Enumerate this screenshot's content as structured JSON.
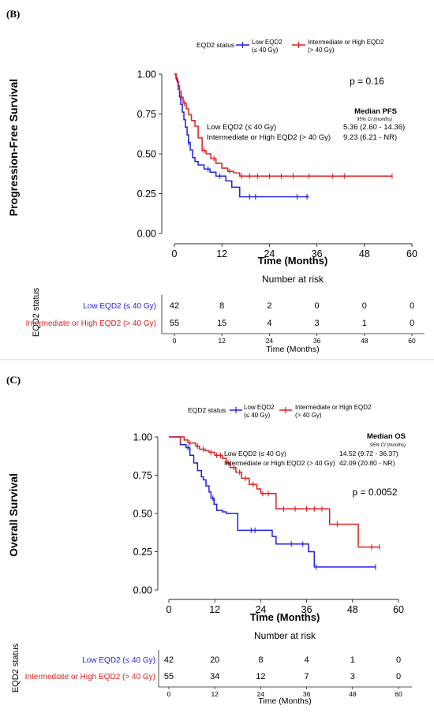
{
  "panels": [
    {
      "panel_label": "(B)",
      "ylabel": "Progression-Free Survival",
      "xlabel": "Time (Months)",
      "legend_title": "EQD2 status",
      "legend_items": [
        {
          "line1": "Low EQD2",
          "line2": "(≤ 40 Gy)",
          "color": "#1f1fe0"
        },
        {
          "line1": "Intermediate or High EQD2",
          "line2": "(> 40 Gy)",
          "color": "#e01f1f"
        }
      ],
      "pvalue": "p = 0.16",
      "median_title": "Median PFS",
      "median_subtitle": "95% CI (months)",
      "median_rows": [
        {
          "label": "Low EQD2 (≤ 40 Gy)",
          "value": "5.36 (2.60 - 14.36)"
        },
        {
          "label": "Intermediate or High EQD2 (> 40 Gy)",
          "value": "9.23 (6.21 - NR)"
        }
      ],
      "risk_title": "Number at risk",
      "risk_ylabel": "EQD2 status",
      "risk_xlabel": "Time (Months)",
      "risk_rows": [
        {
          "label": "Low EQD2 (≤ 40 Gy)",
          "color": "#1f1fe0",
          "counts": [
            "42",
            "8",
            "2",
            "0",
            "0",
            "0"
          ]
        },
        {
          "label": "Intermediate or High EQD2 (> 40 Gy)",
          "color": "#e01f1f",
          "counts": [
            "55",
            "15",
            "4",
            "3",
            "1",
            "0"
          ]
        }
      ]
    },
    {
      "panel_label": "(C)",
      "ylabel": "Overall Survival",
      "xlabel": "Time (Months)",
      "legend_title": "EQD2 status",
      "legend_items": [
        {
          "line1": "Low EQD2",
          "line2": "(≤ 40 Gy)",
          "color": "#1f1fe0"
        },
        {
          "line1": "Intermediate or High EQD2",
          "line2": "(> 40 Gy)",
          "color": "#e01f1f"
        }
      ],
      "pvalue": "p = 0.0052",
      "median_title": "Median OS",
      "median_subtitle": "95% CI (months)",
      "median_rows": [
        {
          "label": "Low EQD2 (≤ 40 Gy)",
          "value": "14.52 (9.72 - 36.37)"
        },
        {
          "label": "Intermediate or High EQD2 (> 40 Gy)",
          "value": "42.09 (20.80 - NR)"
        }
      ],
      "risk_title": "Number at risk",
      "risk_ylabel": "EQD2 status",
      "risk_xlabel": "Time (Months)",
      "risk_rows": [
        {
          "label": "Low EQD2 (≤ 40 Gy)",
          "color": "#1f1fe0",
          "counts": [
            "42",
            "20",
            "8",
            "4",
            "1",
            "0"
          ]
        },
        {
          "label": "Intermediate or High EQD2 (> 40 Gy)",
          "color": "#e01f1f",
          "counts": [
            "55",
            "34",
            "12",
            "7",
            "3",
            "0"
          ]
        }
      ]
    }
  ],
  "chart_data": [
    {
      "type": "line",
      "step": true,
      "xlabel": "Time (Months)",
      "ylabel": "Progression-Free Survival",
      "xlim": [
        0,
        60
      ],
      "ylim": [
        0,
        1
      ],
      "xticks": [
        0,
        12,
        24,
        36,
        48,
        60
      ],
      "yticks": [
        0,
        0.25,
        0.5,
        0.75,
        1
      ],
      "series": [
        {
          "name": "Low EQD2 (≤ 40 Gy)",
          "color": "#1f1fe0",
          "x": [
            0,
            0.4,
            0.7,
            1.0,
            1.3,
            1.6,
            2.0,
            2.4,
            2.8,
            3.2,
            3.6,
            4.0,
            4.6,
            5.2,
            6.0,
            7.5,
            9.0,
            10.5,
            13.0,
            14.5,
            16.5,
            34
          ],
          "y": [
            1.0,
            0.976,
            0.952,
            0.905,
            0.857,
            0.81,
            0.762,
            0.714,
            0.667,
            0.619,
            0.571,
            0.524,
            0.476,
            0.452,
            0.43,
            0.405,
            0.385,
            0.36,
            0.33,
            0.29,
            0.23,
            0.23
          ],
          "censor_x": [
            3.5,
            8.5,
            11.5,
            19.0,
            20.5,
            31.0,
            33.5
          ],
          "censor_y": [
            0.571,
            0.405,
            0.36,
            0.23,
            0.23,
            0.23,
            0.23
          ]
        },
        {
          "name": "Intermediate or High EQD2 (> 40 Gy)",
          "color": "#e01f1f",
          "x": [
            0,
            0.5,
            0.9,
            1.3,
            1.7,
            2.2,
            3.0,
            3.6,
            4.3,
            5.2,
            6.0,
            7.0,
            8.0,
            9.2,
            10.5,
            12.0,
            13.5,
            15.0,
            16.5,
            55
          ],
          "y": [
            1.0,
            0.964,
            0.927,
            0.891,
            0.855,
            0.818,
            0.782,
            0.745,
            0.709,
            0.673,
            0.6,
            0.52,
            0.5,
            0.47,
            0.44,
            0.41,
            0.39,
            0.38,
            0.36,
            0.36
          ],
          "censor_x": [
            1.8,
            2.5,
            7.5,
            10.0,
            14.0,
            17.0,
            19.0,
            21.0,
            24.0,
            27.0,
            30.0,
            34.0,
            40.0,
            43.0,
            55.0
          ],
          "censor_y": [
            0.855,
            0.818,
            0.52,
            0.47,
            0.39,
            0.36,
            0.36,
            0.36,
            0.36,
            0.36,
            0.36,
            0.36,
            0.36,
            0.36,
            0.36
          ]
        }
      ]
    },
    {
      "type": "line",
      "step": true,
      "xlabel": "Time (Months)",
      "ylabel": "Overall Survival",
      "xlim": [
        0,
        60
      ],
      "ylim": [
        0,
        1
      ],
      "xticks": [
        0,
        12,
        24,
        36,
        48,
        60
      ],
      "yticks": [
        0,
        0.25,
        0.5,
        0.75,
        1
      ],
      "series": [
        {
          "name": "Low EQD2 (≤ 40 Gy)",
          "color": "#1f1fe0",
          "x": [
            0,
            3.0,
            4.5,
            5.5,
            6.5,
            7.5,
            8.5,
            9.0,
            9.7,
            10.5,
            11.0,
            11.8,
            12.5,
            14.0,
            15.0,
            18.0,
            27.0,
            28.0,
            36.5,
            38.0,
            54
          ],
          "y": [
            1.0,
            0.95,
            0.93,
            0.88,
            0.83,
            0.78,
            0.74,
            0.72,
            0.68,
            0.64,
            0.6,
            0.56,
            0.52,
            0.51,
            0.5,
            0.39,
            0.35,
            0.3,
            0.25,
            0.15,
            0.15
          ],
          "censor_x": [
            5.0,
            11.5,
            21.5,
            22.5,
            32.0,
            35.0,
            38.5,
            54.0
          ],
          "censor_y": [
            0.93,
            0.6,
            0.39,
            0.39,
            0.3,
            0.3,
            0.15,
            0.15
          ]
        },
        {
          "name": "Intermediate or High EQD2 (> 40 Gy)",
          "color": "#e01f1f",
          "x": [
            0,
            4.0,
            5.0,
            7.0,
            8.0,
            9.5,
            10.5,
            12.0,
            14.0,
            15.0,
            16.0,
            17.5,
            19.0,
            21.0,
            23.0,
            24.0,
            28.0,
            42.0,
            49.5,
            55
          ],
          "y": [
            1.0,
            0.98,
            0.96,
            0.94,
            0.92,
            0.91,
            0.9,
            0.88,
            0.86,
            0.83,
            0.8,
            0.77,
            0.73,
            0.69,
            0.66,
            0.63,
            0.53,
            0.43,
            0.28,
            0.28
          ],
          "censor_x": [
            3.0,
            5.5,
            7.5,
            9.0,
            11.0,
            12.5,
            13.5,
            15.5,
            17.0,
            18.5,
            20.0,
            22.0,
            24.5,
            26.0,
            30.0,
            33.0,
            36.0,
            38.0,
            40.0,
            44.0,
            53.0,
            55.0
          ],
          "censor_y": [
            0.98,
            0.96,
            0.94,
            0.92,
            0.9,
            0.88,
            0.88,
            0.83,
            0.8,
            0.77,
            0.73,
            0.69,
            0.63,
            0.63,
            0.53,
            0.53,
            0.53,
            0.53,
            0.53,
            0.43,
            0.28,
            0.28
          ]
        }
      ]
    }
  ]
}
